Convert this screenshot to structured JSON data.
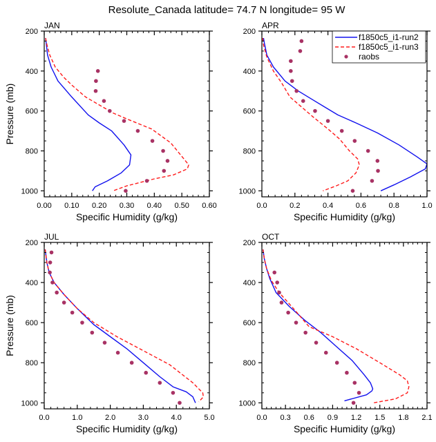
{
  "figure_title": "Resolute_Canada  latitude= 74.7 N longitude= 95 W",
  "colors": {
    "run2": "#1010ee",
    "run3": "#ff1a1a",
    "raobs": "#a83264",
    "axis": "#000000"
  },
  "legend": {
    "entries": [
      {
        "label": "f1850c5_i1-run2",
        "style": "solid",
        "series": "run2"
      },
      {
        "label": "f1850c5_i1-run3",
        "style": "dashed",
        "series": "run3"
      },
      {
        "label": "raobs",
        "style": "marker",
        "series": "raobs"
      }
    ],
    "placement": "top-right of APR panel"
  },
  "chart_data": [
    {
      "type": "line",
      "panel": "JAN",
      "title": "JAN",
      "xlabel": "Specific Humidity (g/kg)",
      "ylabel": "Pressure (mb)",
      "xlim": [
        0,
        0.6
      ],
      "ylim": [
        200,
        1030
      ],
      "y_inverted": true,
      "xticks": [
        "0.00",
        "0.10",
        "0.20",
        "0.30",
        "0.40",
        "0.50",
        "0.60"
      ],
      "xtick_values": [
        0,
        0.1,
        0.2,
        0.3,
        0.4,
        0.5,
        0.6
      ],
      "yticks": [
        "200",
        "400",
        "600",
        "800",
        "1000"
      ],
      "ytick_values": [
        200,
        400,
        600,
        800,
        1000
      ],
      "series": [
        {
          "name": "f1850c5_i1-run2",
          "kind": "line",
          "x": [
            0.005,
            0.008,
            0.012,
            0.025,
            0.05,
            0.1,
            0.16,
            0.2,
            0.245,
            0.29,
            0.315,
            0.31,
            0.28,
            0.23,
            0.185,
            0.175
          ],
          "y": [
            235,
            270,
            320,
            380,
            450,
            530,
            620,
            660,
            700,
            770,
            820,
            870,
            910,
            950,
            980,
            1000
          ]
        },
        {
          "name": "f1850c5_i1-run3",
          "kind": "dashed",
          "x": [
            0.005,
            0.01,
            0.02,
            0.04,
            0.07,
            0.1,
            0.15,
            0.2,
            0.25,
            0.3,
            0.39,
            0.46,
            0.525,
            0.52,
            0.47,
            0.4,
            0.3,
            0.25
          ],
          "y": [
            235,
            270,
            320,
            380,
            430,
            470,
            530,
            570,
            610,
            640,
            690,
            760,
            870,
            890,
            920,
            940,
            975,
            1000
          ]
        },
        {
          "name": "raobs",
          "kind": "marker",
          "x": [
            0.195,
            0.188,
            0.187,
            0.217,
            0.238,
            0.29,
            0.34,
            0.393,
            0.432,
            0.448,
            0.435,
            0.373,
            0.296
          ],
          "y": [
            400,
            450,
            500,
            550,
            600,
            650,
            700,
            750,
            800,
            850,
            900,
            950,
            1000
          ]
        }
      ]
    },
    {
      "type": "line",
      "panel": "APR",
      "title": "APR",
      "xlabel": "Specific Humidity (g/kg)",
      "ylabel": "",
      "xlim": [
        0,
        1.0
      ],
      "ylim": [
        200,
        1030
      ],
      "y_inverted": true,
      "xticks": [
        "0.0",
        "0.2",
        "0.4",
        "0.6",
        "0.8",
        "1.0"
      ],
      "xtick_values": [
        0,
        0.2,
        0.4,
        0.6,
        0.8,
        1.0
      ],
      "yticks": [
        "200",
        "400",
        "600",
        "800",
        "1000"
      ],
      "ytick_values": [
        200,
        400,
        600,
        800,
        1000
      ],
      "series": [
        {
          "name": "f1850c5_i1-run2",
          "kind": "line",
          "x": [
            0.01,
            0.015,
            0.03,
            0.07,
            0.14,
            0.22,
            0.3,
            0.38,
            0.46,
            0.57,
            0.7,
            0.83,
            0.94,
            1.0,
            0.99,
            0.9,
            0.8,
            0.72
          ],
          "y": [
            235,
            260,
            320,
            380,
            450,
            500,
            540,
            580,
            620,
            660,
            710,
            770,
            830,
            865,
            890,
            930,
            970,
            1000
          ]
        },
        {
          "name": "f1850c5_i1-run3",
          "kind": "dashed",
          "x": [
            0.005,
            0.01,
            0.03,
            0.07,
            0.12,
            0.17,
            0.24,
            0.31,
            0.4,
            0.47,
            0.53,
            0.58,
            0.59,
            0.57,
            0.52,
            0.45,
            0.37
          ],
          "y": [
            235,
            270,
            330,
            400,
            460,
            530,
            580,
            630,
            690,
            740,
            800,
            840,
            870,
            910,
            950,
            975,
            1000
          ]
        },
        {
          "name": "raobs",
          "kind": "marker",
          "x": [
            0.24,
            0.232,
            0.175,
            0.175,
            0.183,
            0.21,
            0.25,
            0.322,
            0.4,
            0.484,
            0.562,
            0.643,
            0.7,
            0.703,
            0.667,
            0.55
          ],
          "y": [
            250,
            300,
            350,
            400,
            450,
            500,
            550,
            600,
            650,
            700,
            750,
            800,
            850,
            900,
            950,
            1000
          ]
        }
      ]
    },
    {
      "type": "line",
      "panel": "JUL",
      "title": "JUL",
      "xlabel": "Specific Humidity (g/kg)",
      "ylabel": "Pressure (mb)",
      "xlim": [
        0,
        5.0
      ],
      "ylim": [
        200,
        1030
      ],
      "y_inverted": true,
      "xticks": [
        "0.0",
        "1.0",
        "2.0",
        "3.0",
        "4.0",
        "5.0"
      ],
      "xtick_values": [
        0,
        1,
        2,
        3,
        4,
        5
      ],
      "yticks": [
        "200",
        "400",
        "600",
        "800",
        "1000"
      ],
      "ytick_values": [
        200,
        400,
        600,
        800,
        1000
      ],
      "series": [
        {
          "name": "f1850c5_i1-run2",
          "kind": "line",
          "x": [
            0.03,
            0.08,
            0.15,
            0.3,
            0.6,
            1.0,
            1.5,
            2.0,
            2.5,
            3.0,
            3.5,
            3.9,
            4.3,
            4.5,
            4.58
          ],
          "y": [
            235,
            300,
            350,
            400,
            460,
            530,
            610,
            670,
            730,
            800,
            870,
            920,
            945,
            970,
            1000
          ]
        },
        {
          "name": "f1850c5_i1-run3",
          "kind": "dashed",
          "x": [
            0.03,
            0.08,
            0.15,
            0.3,
            0.6,
            1.0,
            1.5,
            2.2,
            3.0,
            3.8,
            4.5,
            4.8,
            4.82,
            4.68
          ],
          "y": [
            235,
            300,
            350,
            400,
            460,
            530,
            600,
            670,
            740,
            810,
            900,
            950,
            970,
            995
          ]
        },
        {
          "name": "raobs",
          "kind": "marker",
          "x": [
            0.22,
            0.18,
            0.17,
            0.25,
            0.38,
            0.6,
            0.85,
            1.15,
            1.45,
            1.83,
            2.23,
            2.65,
            3.08,
            3.5,
            3.9,
            4.1
          ],
          "y": [
            250,
            300,
            350,
            400,
            450,
            500,
            550,
            600,
            650,
            700,
            750,
            800,
            850,
            900,
            950,
            1000
          ]
        }
      ]
    },
    {
      "type": "line",
      "panel": "OCT",
      "title": "OCT",
      "xlabel": "Specific Humidity (g/kg)",
      "ylabel": "",
      "xlim": [
        0,
        2.1
      ],
      "ylim": [
        200,
        1030
      ],
      "y_inverted": true,
      "xticks": [
        "0.0",
        "0.3",
        "0.6",
        "0.9",
        "1.2",
        "1.5",
        "1.8",
        "2.1"
      ],
      "xtick_values": [
        0,
        0.3,
        0.6,
        0.9,
        1.2,
        1.5,
        1.8,
        2.1
      ],
      "yticks": [
        "200",
        "400",
        "600",
        "800",
        "1000"
      ],
      "ytick_values": [
        200,
        400,
        600,
        800,
        1000
      ],
      "series": [
        {
          "name": "f1850c5_i1-run2",
          "kind": "line",
          "x": [
            0.015,
            0.03,
            0.06,
            0.1,
            0.18,
            0.35,
            0.55,
            0.75,
            0.95,
            1.15,
            1.3,
            1.38,
            1.41,
            1.4,
            1.33,
            1.05
          ],
          "y": [
            235,
            280,
            330,
            380,
            450,
            520,
            590,
            650,
            720,
            790,
            860,
            900,
            930,
            940,
            960,
            990
          ]
        },
        {
          "name": "f1850c5_i1-run3",
          "kind": "dashed",
          "x": [
            0.015,
            0.03,
            0.06,
            0.12,
            0.22,
            0.38,
            0.6,
            0.9,
            1.2,
            1.5,
            1.75,
            1.85,
            1.87,
            1.85,
            1.7,
            1.42
          ],
          "y": [
            235,
            280,
            330,
            390,
            450,
            520,
            620,
            670,
            730,
            800,
            860,
            890,
            920,
            950,
            980,
            1000
          ]
        },
        {
          "name": "raobs",
          "kind": "marker",
          "x": [
            0.16,
            0.195,
            0.22,
            0.25,
            0.335,
            0.435,
            0.555,
            0.69,
            0.815,
            0.955,
            1.08,
            1.18,
            1.235,
            1.165
          ],
          "y": [
            350,
            400,
            450,
            500,
            550,
            600,
            650,
            700,
            750,
            800,
            850,
            900,
            950,
            1000
          ]
        }
      ]
    }
  ]
}
